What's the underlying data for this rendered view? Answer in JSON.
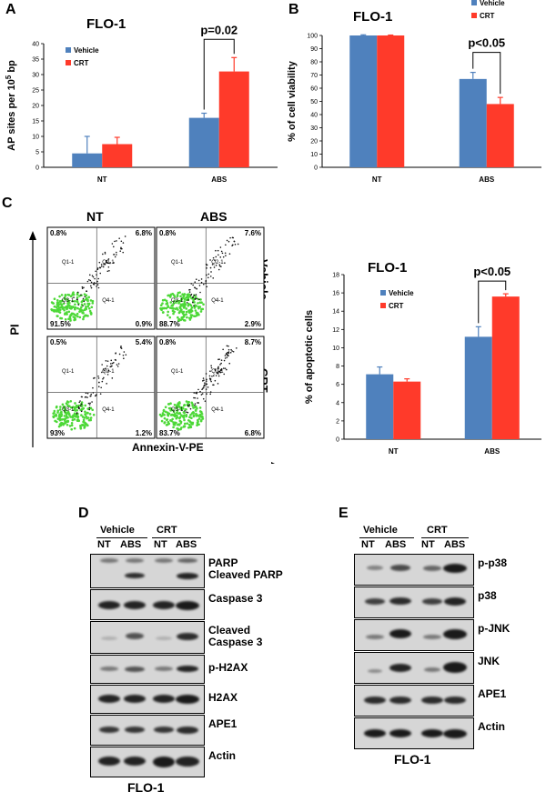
{
  "panels": {
    "A": "A",
    "B": "B",
    "C": "C",
    "D": "D",
    "E": "E"
  },
  "colors": {
    "vehicle": "#4f81bd",
    "crt": "#ff3a2a",
    "flow_green": "#4cd837",
    "blot_bg": "#d6d6d6"
  },
  "chart_data": [
    {
      "id": "A",
      "type": "bar",
      "title": "FLO-1",
      "ylabel": "AP sites per 10",
      "ylabel_sup": "5",
      "ylabel_suffix": " bp",
      "categories": [
        "NT",
        "ABS"
      ],
      "ylim": [
        0,
        40
      ],
      "yticks": [
        "0",
        "5",
        "10",
        "15",
        "20",
        "25",
        "30",
        "35",
        "40"
      ],
      "series": [
        {
          "name": "Vehicle",
          "values": [
            4.5,
            16
          ],
          "errors": [
            5.5,
            1.5
          ]
        },
        {
          "name": "CRT",
          "values": [
            7.5,
            31
          ],
          "errors": [
            2.2,
            4.5
          ]
        }
      ],
      "annotation": "p=0.02"
    },
    {
      "id": "B",
      "type": "bar",
      "title": "FLO-1",
      "ylabel": "% of cell viability",
      "categories": [
        "NT",
        "ABS"
      ],
      "ylim": [
        0,
        100
      ],
      "yticks": [
        "0",
        "10",
        "20",
        "30",
        "40",
        "50",
        "60",
        "70",
        "80",
        "90",
        "100"
      ],
      "series": [
        {
          "name": "Vehicle",
          "values": [
            100,
            67
          ],
          "errors": [
            0.5,
            5
          ]
        },
        {
          "name": "CRT",
          "values": [
            100,
            48
          ],
          "errors": [
            0.3,
            5
          ]
        }
      ],
      "annotation": "p<0.05"
    },
    {
      "id": "C",
      "type": "bar",
      "title": "FLO-1",
      "ylabel": "% of apoptotic cells",
      "categories": [
        "NT",
        "ABS"
      ],
      "ylim": [
        0,
        18
      ],
      "yticks": [
        "0",
        "2",
        "4",
        "6",
        "8",
        "10",
        "12",
        "14",
        "16",
        "18"
      ],
      "series": [
        {
          "name": "Vehicle",
          "values": [
            7.1,
            11.2
          ],
          "errors": [
            0.8,
            1.1
          ]
        },
        {
          "name": "CRT",
          "values": [
            6.3,
            15.6
          ],
          "errors": [
            0.3,
            0.3
          ]
        }
      ],
      "annotation": "p<0.05"
    }
  ],
  "flow": {
    "col_labels": [
      "NT",
      "ABS"
    ],
    "row_labels": [
      "Vehicle",
      "CRT"
    ],
    "y_axis": "PI",
    "x_axis": "Annexin-V-PE",
    "quadrant_names": [
      "Q1-1",
      "Q2-1",
      "Q3-1",
      "Q4-1"
    ],
    "plots": [
      {
        "tl": "0.8%",
        "tr": "6.8%",
        "bl": "91.5%",
        "br": "0.9%"
      },
      {
        "tl": "0.8%",
        "tr": "7.6%",
        "bl": "88.7%",
        "br": "2.9%"
      },
      {
        "tl": "0.5%",
        "tr": "5.4%",
        "bl": "93%",
        "br": "1.2%"
      },
      {
        "tl": "0.8%",
        "tr": "8.7%",
        "bl": "83.7%",
        "br": "6.8%"
      }
    ]
  },
  "blot_d": {
    "groups": [
      "Vehicle",
      "CRT"
    ],
    "lanes": [
      "NT",
      "ABS",
      "NT",
      "ABS"
    ],
    "rows": [
      "PARP\nCleaved PARP",
      "Caspase 3",
      "Cleaved\nCaspase 3",
      "p-H2AX",
      "H2AX",
      "APE1",
      "Actin"
    ],
    "footer": "FLO-1"
  },
  "blot_e": {
    "groups": [
      "Vehicle",
      "CRT"
    ],
    "lanes": [
      "NT",
      "ABS",
      "NT",
      "ABS"
    ],
    "rows": [
      "p-p38",
      "p38",
      "p-JNK",
      "JNK",
      "APE1",
      "Actin"
    ],
    "footer": "FLO-1"
  }
}
